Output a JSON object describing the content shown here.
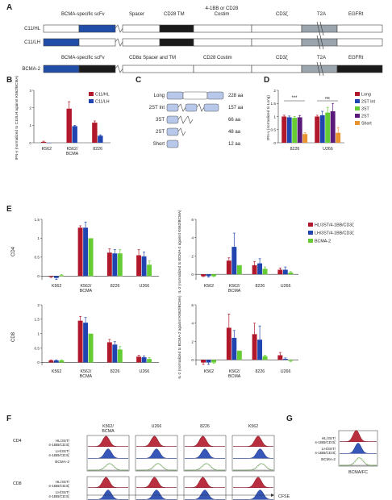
{
  "panels": [
    "A",
    "B",
    "C",
    "D",
    "E",
    "F",
    "G"
  ],
  "constructs": {
    "rows": [
      "C11/HL",
      "C11/LH",
      "BCMA-2"
    ],
    "top_segments": [
      "BCMA-specific scFv",
      "Spacer",
      "CD28 TM",
      "4-1BB or CD28",
      "Costim",
      "CD3ζ",
      "T2A",
      "EGFRt"
    ],
    "bcma2_segments": [
      "BCMA-specific scFv",
      "CD8α Spacer and TM",
      "CD28 Costim",
      "CD3ζ",
      "T2A",
      "EGFRt"
    ]
  },
  "spacers": {
    "names": [
      "Long",
      "2ST Int",
      "3ST",
      "2ST",
      "Short"
    ],
    "lengths": [
      "228 aa",
      "157 aa",
      "66 aa",
      "48 aa",
      "12 aa"
    ]
  },
  "colors": {
    "red": "#b2182b",
    "blue": "#2145b0",
    "green": "#66cc33",
    "purple": "#5a1a7a",
    "orange": "#e8932e",
    "grey": "#9aa5ad"
  },
  "chart_data": [
    {
      "panel": "B",
      "type": "bar",
      "categories": [
        "K562",
        "K562/\nBCMA",
        "8226"
      ],
      "series": [
        {
          "name": "C11/HL",
          "values": [
            0.05,
            1.95,
            1.15
          ],
          "errors": [
            0.04,
            0.4,
            0.1
          ]
        },
        {
          "name": "C11/LH",
          "values": [
            0,
            0.95,
            0.4
          ],
          "errors": [
            0,
            0.05,
            0.05
          ]
        }
      ],
      "ylabel": "IFN-γ (normalized to C11/LH against K562/BCMA)",
      "ylim": [
        0,
        3
      ],
      "yticks": [
        0,
        1,
        2,
        3
      ]
    },
    {
      "panel": "D",
      "type": "bar",
      "categories": [
        "8226",
        "U266"
      ],
      "series": [
        {
          "name": "Long",
          "values": [
            1.0,
            1.0
          ],
          "errors": [
            0.05,
            0.05
          ]
        },
        {
          "name": "2ST Int",
          "values": [
            0.97,
            1.05
          ],
          "errors": [
            0.05,
            0.15
          ]
        },
        {
          "name": "3ST",
          "values": [
            0.95,
            1.15
          ],
          "errors": [
            0.05,
            0.2
          ]
        },
        {
          "name": "2ST",
          "values": [
            0.97,
            1.2
          ],
          "errors": [
            0.07,
            0.3
          ]
        },
        {
          "name": "Short",
          "values": [
            0.33,
            0.38
          ],
          "errors": [
            0.05,
            0.2
          ]
        }
      ],
      "ylabel": "IFN-γ (normalized to Long)",
      "annotations": [
        "***",
        "ns"
      ],
      "ylim": [
        0,
        2
      ],
      "yticks": [
        0,
        0.5,
        1,
        1.5,
        2
      ]
    },
    {
      "panel": "E",
      "type": "bar",
      "subplot": "CD4 IFN-γ",
      "categories": [
        "K562",
        "K562/\nBCMA",
        "8226",
        "U266"
      ],
      "series": [
        {
          "name": "HL/3ST/4-1BB/CD3ζ",
          "values": [
            -0.02,
            1.28,
            0.62,
            0.55
          ],
          "errors": [
            0.02,
            0.05,
            0.1,
            0.15
          ]
        },
        {
          "name": "LH/3ST/4-1BB/CD3ζ",
          "values": [
            -0.05,
            1.28,
            0.6,
            0.52
          ],
          "errors": [
            0.04,
            0.15,
            0.1,
            0.12
          ]
        },
        {
          "name": "BCMA-2",
          "values": [
            0.02,
            1.0,
            0.6,
            0.3
          ],
          "errors": [
            0.02,
            0,
            0.1,
            0.1
          ]
        }
      ],
      "ylabel": "CD4",
      "ylim": [
        -0.1,
        1.5
      ],
      "yticks": [
        0,
        0.5,
        1,
        1.5
      ]
    },
    {
      "panel": "E",
      "type": "bar",
      "subplot": "CD4 IL-2",
      "categories": [
        "K562",
        "K562/\nBCMA",
        "8226",
        "U266"
      ],
      "series": [
        {
          "name": "HL/3ST/4-1BB/CD3ζ",
          "values": [
            -0.2,
            1.5,
            1.0,
            0.5
          ],
          "errors": [
            0.05,
            0.3,
            0.4,
            0.2
          ]
        },
        {
          "name": "LH/3ST/4-1BB/CD3ζ",
          "values": [
            -0.2,
            3.0,
            1.2,
            0.5
          ],
          "errors": [
            0.1,
            1.5,
            0.5,
            0.3
          ]
        },
        {
          "name": "BCMA-2",
          "values": [
            -0.2,
            1.0,
            0.6,
            0.2
          ],
          "errors": [
            0.05,
            0,
            0.2,
            0.1
          ]
        }
      ],
      "ylabel": "IL-2 (normalized to BCMA-2 against K562/BCMA)",
      "ylim": [
        -0.6,
        6
      ],
      "yticks": [
        0,
        2,
        4,
        6
      ]
    },
    {
      "panel": "E",
      "type": "bar",
      "subplot": "CD8 IFN-γ",
      "categories": [
        "K562",
        "K562/\nBCMA",
        "8226",
        "U266"
      ],
      "series": [
        {
          "name": "HL/3ST/4-1BB/CD3ζ",
          "values": [
            0.07,
            1.45,
            0.7,
            0.2
          ],
          "errors": [
            0.02,
            0.15,
            0.1,
            0.05
          ]
        },
        {
          "name": "LH/3ST/4-1BB/CD3ζ",
          "values": [
            0.07,
            1.38,
            0.62,
            0.18
          ],
          "errors": [
            0.02,
            0.18,
            0.1,
            0.05
          ]
        },
        {
          "name": "BCMA-2",
          "values": [
            0.07,
            1.0,
            0.45,
            0.12
          ],
          "errors": [
            0.02,
            0,
            0.1,
            0.05
          ]
        }
      ],
      "ylabel": "CD8",
      "ylim": [
        -0.1,
        2
      ],
      "yticks": [
        0,
        0.5,
        1,
        1.5,
        2
      ]
    },
    {
      "panel": "E",
      "type": "bar",
      "subplot": "CD8 IL-2",
      "categories": [
        "K562",
        "K562/\nBCMA",
        "8226",
        "U266"
      ],
      "series": [
        {
          "name": "HL/3ST/4-1BB/CD3ζ",
          "values": [
            -0.3,
            3.5,
            2.8,
            0.5
          ],
          "errors": [
            0.2,
            1.5,
            1.2,
            0.3
          ]
        },
        {
          "name": "LH/3ST/4-1BB/CD3ζ",
          "values": [
            -0.3,
            2.4,
            2.2,
            0.1
          ],
          "errors": [
            0.2,
            0.8,
            1.5,
            0.1
          ]
        },
        {
          "name": "BCMA-2",
          "values": [
            -0.3,
            1.0,
            0.4,
            -0.1
          ],
          "errors": [
            0.1,
            0,
            0.1,
            0.1
          ]
        }
      ],
      "ylabel": "IL-2 (normalized to BCMA-2 against K562/BCMA)",
      "ylim": [
        -0.6,
        6
      ],
      "yticks": [
        0,
        2,
        4,
        6
      ]
    }
  ],
  "flow": {
    "columns": [
      "K562/\nBCMA",
      "U266",
      "8226",
      "K562"
    ],
    "cd4_label": "CD4",
    "cd8_label": "CD8",
    "row_labels": [
      "HL/3ST/\n4-1BB/CD3ζ",
      "LH/3ST/\n4-1BB/CD3ζ",
      "BCMA-2"
    ],
    "xlabel": "CFSE"
  },
  "g": {
    "row_labels": [
      "HL/3ST/\n4-1BB/CD3ζ",
      "LH/3ST/\n4-1BB/CD3ζ",
      "BCMA-2"
    ],
    "xlabel": "BCMA/FC"
  }
}
